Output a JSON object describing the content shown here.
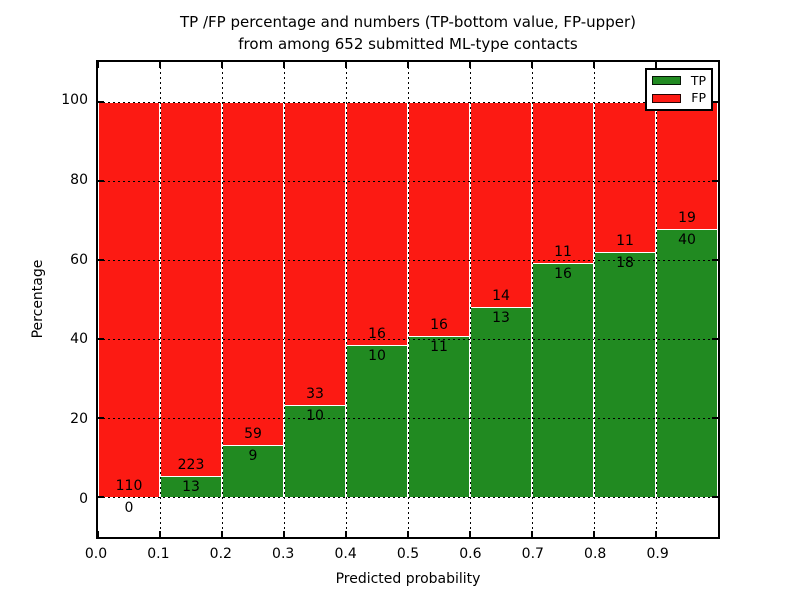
{
  "title": {
    "line1": "TP /FP percentage and numbers (TP-bottom value, FP-upper)",
    "line2": "from among 652 submitted ML-type contacts"
  },
  "axes": {
    "xlabel": "Predicted probability",
    "ylabel": "Percentage",
    "xtick_labels": [
      "0.0",
      "0.1",
      "0.2",
      "0.3",
      "0.4",
      "0.5",
      "0.6",
      "0.7",
      "0.8",
      "0.9"
    ],
    "xtick_values": [
      0.0,
      0.1,
      0.2,
      0.3,
      0.4,
      0.5,
      0.6,
      0.7,
      0.8,
      0.9
    ],
    "ytick_labels": [
      "0",
      "20",
      "40",
      "60",
      "80",
      "100"
    ],
    "ytick_values": [
      0,
      20,
      40,
      60,
      80,
      100
    ],
    "xlim": [
      0.0,
      1.0
    ],
    "ylim": [
      -10,
      110
    ],
    "grid": true
  },
  "legend": {
    "position": "upper right",
    "entries": [
      {
        "label": "TP",
        "color": "#218a21"
      },
      {
        "label": "FP",
        "color": "#fc1a13"
      }
    ]
  },
  "chart_data": {
    "type": "bar",
    "stacked": true,
    "normalized_to_percent": true,
    "title": "TP /FP percentage and numbers (TP-bottom value, FP-upper) from among 652 submitted ML-type contacts",
    "xlabel": "Predicted probability",
    "ylabel": "Percentage",
    "xlim": [
      0.0,
      1.0
    ],
    "ylim": [
      -10,
      110
    ],
    "bin_edges": [
      0.0,
      0.1,
      0.2,
      0.3,
      0.4,
      0.5,
      0.6,
      0.7,
      0.8,
      0.9,
      1.0
    ],
    "categories": [
      "0.0-0.1",
      "0.1-0.2",
      "0.2-0.3",
      "0.3-0.4",
      "0.4-0.5",
      "0.5-0.6",
      "0.6-0.7",
      "0.7-0.8",
      "0.8-0.9",
      "0.9-1.0"
    ],
    "series": [
      {
        "name": "TP",
        "color": "#218a21",
        "counts": [
          0,
          13,
          9,
          10,
          10,
          11,
          13,
          16,
          18,
          40
        ]
      },
      {
        "name": "FP",
        "color": "#fc1a13",
        "counts": [
          110,
          223,
          59,
          33,
          16,
          16,
          14,
          11,
          11,
          19
        ]
      }
    ],
    "total_contacts": 652,
    "tp_percent_of_bar": [
      0.0,
      5.5,
      13.2,
      23.3,
      38.5,
      40.7,
      48.1,
      59.3,
      62.1,
      67.8
    ],
    "legend_position": "upper right",
    "grid": "dotted, drawn above bars"
  }
}
